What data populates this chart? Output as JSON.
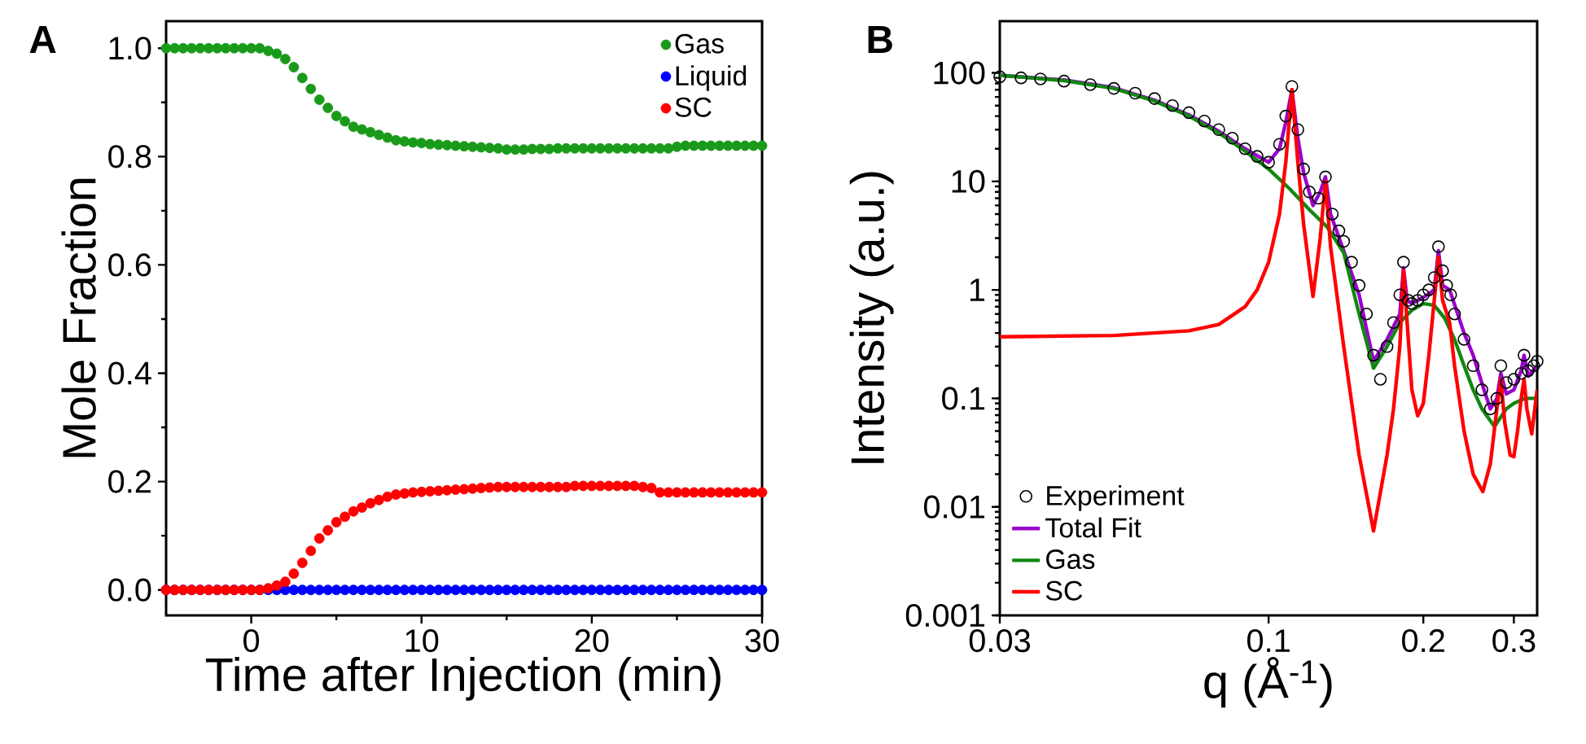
{
  "chart_data": [
    {
      "type": "scatter",
      "title": "A",
      "xlabel": "Time after Injection (min)",
      "ylabel": "Mole Fraction",
      "x": [
        -5,
        -4.5,
        -4,
        -3.5,
        -3,
        -2.5,
        -2,
        -1.5,
        -1,
        -0.5,
        0,
        0.5,
        1,
        1.5,
        2,
        2.5,
        3,
        3.5,
        4,
        4.5,
        5,
        5.5,
        6,
        6.5,
        7,
        7.5,
        8,
        8.5,
        9,
        9.5,
        10,
        10.5,
        11,
        11.5,
        12,
        12.5,
        13,
        13.5,
        14,
        14.5,
        15,
        15.5,
        16,
        16.5,
        17,
        17.5,
        18,
        18.5,
        19,
        19.5,
        20,
        20.5,
        21,
        21.5,
        22,
        22.5,
        23,
        23.5,
        24,
        24.5,
        25,
        25.5,
        26,
        26.5,
        27,
        27.5,
        28,
        28.5,
        29,
        29.5,
        30
      ],
      "series": [
        {
          "name": "Gas",
          "color": "#1a9a1a",
          "values": [
            1.0,
            1.0,
            1.0,
            1.0,
            1.0,
            1.0,
            1.0,
            1.0,
            1.0,
            1.0,
            1.0,
            1.0,
            0.995,
            0.99,
            0.98,
            0.965,
            0.945,
            0.925,
            0.905,
            0.89,
            0.875,
            0.865,
            0.855,
            0.85,
            0.845,
            0.84,
            0.835,
            0.83,
            0.828,
            0.826,
            0.825,
            0.823,
            0.822,
            0.821,
            0.82,
            0.819,
            0.818,
            0.817,
            0.816,
            0.815,
            0.813,
            0.813,
            0.813,
            0.814,
            0.814,
            0.814,
            0.815,
            0.815,
            0.815,
            0.815,
            0.815,
            0.815,
            0.815,
            0.815,
            0.815,
            0.815,
            0.815,
            0.815,
            0.815,
            0.815,
            0.818,
            0.82,
            0.82,
            0.82,
            0.82,
            0.82,
            0.82,
            0.82,
            0.82,
            0.82,
            0.82
          ]
        },
        {
          "name": "Liquid",
          "color": "#0000ff",
          "values": [
            0,
            0,
            0,
            0,
            0,
            0,
            0,
            0,
            0,
            0,
            0,
            0,
            0,
            0,
            0,
            0,
            0,
            0,
            0,
            0,
            0,
            0,
            0,
            0,
            0,
            0,
            0,
            0,
            0,
            0,
            0,
            0,
            0,
            0,
            0,
            0,
            0,
            0,
            0,
            0,
            0,
            0,
            0,
            0,
            0,
            0,
            0,
            0,
            0,
            0,
            0,
            0,
            0,
            0,
            0,
            0,
            0,
            0,
            0,
            0,
            0,
            0,
            0,
            0,
            0,
            0,
            0,
            0,
            0,
            0,
            0
          ]
        },
        {
          "name": "SC",
          "color": "#ff0000",
          "values": [
            0,
            0,
            0,
            0,
            0,
            0,
            0,
            0,
            0,
            0,
            0,
            0,
            0.003,
            0.008,
            0.015,
            0.03,
            0.05,
            0.072,
            0.095,
            0.11,
            0.125,
            0.135,
            0.145,
            0.152,
            0.16,
            0.166,
            0.172,
            0.176,
            0.178,
            0.18,
            0.181,
            0.182,
            0.183,
            0.184,
            0.185,
            0.186,
            0.187,
            0.188,
            0.189,
            0.19,
            0.19,
            0.19,
            0.19,
            0.19,
            0.19,
            0.19,
            0.19,
            0.19,
            0.192,
            0.192,
            0.192,
            0.192,
            0.192,
            0.192,
            0.192,
            0.192,
            0.19,
            0.188,
            0.18,
            0.18,
            0.18,
            0.18,
            0.18,
            0.18,
            0.18,
            0.18,
            0.18,
            0.18,
            0.18,
            0.18,
            0.18
          ]
        }
      ],
      "xlim": [
        -5,
        30
      ],
      "ylim": [
        -0.047,
        1.05
      ],
      "xticks": [
        0,
        10,
        20,
        30
      ],
      "yticks": [
        {
          "value": 0,
          "label": "0.0"
        },
        0.2,
        0.4,
        0.6,
        0.8,
        {
          "value": 1,
          "label": "1.0"
        }
      ],
      "legend": "top right",
      "marker": "circle"
    },
    {
      "type": "line",
      "title": "B",
      "xlabel": "q (Å$^{-1}$)",
      "ylabel": "Intensity (a.u.)",
      "log": "xy",
      "series": [
        {
          "name": "Experiment",
          "type": "scatter",
          "marker": "circle",
          "color": "#000000",
          "x": [
            0.03,
            0.033,
            0.036,
            0.04,
            0.045,
            0.05,
            0.055,
            0.06,
            0.065,
            0.07,
            0.075,
            0.08,
            0.085,
            0.09,
            0.095,
            0.1,
            0.105,
            0.108,
            0.111,
            0.114,
            0.117,
            0.12,
            0.125,
            0.129,
            0.133,
            0.137,
            0.14,
            0.145,
            0.15,
            0.155,
            0.16,
            0.165,
            0.17,
            0.175,
            0.18,
            0.183,
            0.187,
            0.19,
            0.195,
            0.2,
            0.205,
            0.21,
            0.214,
            0.218,
            0.222,
            0.226,
            0.23,
            0.24,
            0.25,
            0.26,
            0.27,
            0.278,
            0.283,
            0.29,
            0.3,
            0.31,
            0.314,
            0.32,
            0.328,
            0.333
          ],
          "values": [
            92,
            90,
            88,
            84,
            78,
            72,
            65,
            58,
            50,
            43,
            36,
            30,
            25,
            20,
            17,
            15,
            22,
            40,
            75,
            30,
            13,
            8,
            7,
            11,
            5,
            3.5,
            2.8,
            1.8,
            1.1,
            0.6,
            0.25,
            0.15,
            0.3,
            0.5,
            0.9,
            1.8,
            0.8,
            0.75,
            0.8,
            0.9,
            1.0,
            1.3,
            2.5,
            1.5,
            1.1,
            0.9,
            0.6,
            0.35,
            0.2,
            0.12,
            0.08,
            0.1,
            0.2,
            0.14,
            0.15,
            0.17,
            0.25,
            0.18,
            0.2,
            0.22
          ]
        },
        {
          "name": "Total Fit",
          "marker": "none",
          "color": "#9900cc",
          "x": [
            0.03,
            0.04,
            0.05,
            0.06,
            0.07,
            0.08,
            0.09,
            0.1,
            0.105,
            0.108,
            0.111,
            0.114,
            0.117,
            0.122,
            0.126,
            0.129,
            0.132,
            0.14,
            0.15,
            0.16,
            0.17,
            0.18,
            0.183,
            0.186,
            0.19,
            0.2,
            0.21,
            0.214,
            0.218,
            0.225,
            0.24,
            0.25,
            0.261,
            0.27,
            0.278,
            0.283,
            0.29,
            0.3,
            0.31,
            0.314,
            0.32,
            0.333
          ],
          "values": [
            95,
            86,
            73,
            56,
            41,
            29,
            20,
            15,
            20,
            35,
            70,
            25,
            12,
            6,
            8,
            11,
            5,
            2.3,
            0.9,
            0.22,
            0.35,
            0.6,
            1.6,
            0.8,
            0.75,
            0.85,
            1.0,
            2.3,
            1.1,
            1.0,
            0.4,
            0.25,
            0.13,
            0.08,
            0.1,
            0.17,
            0.11,
            0.12,
            0.18,
            0.25,
            0.16,
            0.2
          ]
        },
        {
          "name": "Gas",
          "marker": "none",
          "color": "#118811",
          "x": [
            0.03,
            0.04,
            0.05,
            0.06,
            0.07,
            0.08,
            0.09,
            0.1,
            0.11,
            0.12,
            0.13,
            0.14,
            0.15,
            0.16,
            0.17,
            0.18,
            0.19,
            0.2,
            0.21,
            0.22,
            0.23,
            0.24,
            0.25,
            0.26,
            0.275,
            0.29,
            0.3,
            0.315,
            0.333
          ],
          "values": [
            95,
            85,
            72,
            55,
            40,
            28,
            19,
            13,
            8.5,
            5.5,
            3.8,
            2.2,
            0.6,
            0.19,
            0.3,
            0.5,
            0.65,
            0.75,
            0.72,
            0.55,
            0.35,
            0.2,
            0.12,
            0.08,
            0.055,
            0.08,
            0.09,
            0.1,
            0.1
          ]
        },
        {
          "name": "SC",
          "marker": "none",
          "color": "#ff0000",
          "x": [
            0.03,
            0.05,
            0.07,
            0.08,
            0.09,
            0.095,
            0.1,
            0.105,
            0.108,
            0.111,
            0.114,
            0.117,
            0.122,
            0.126,
            0.129,
            0.132,
            0.14,
            0.15,
            0.16,
            0.17,
            0.175,
            0.18,
            0.183,
            0.186,
            0.19,
            0.195,
            0.2,
            0.205,
            0.21,
            0.214,
            0.218,
            0.225,
            0.23,
            0.24,
            0.25,
            0.261,
            0.27,
            0.278,
            0.283,
            0.288,
            0.295,
            0.3,
            0.305,
            0.31,
            0.314,
            0.318,
            0.325,
            0.333
          ],
          "values": [
            0.37,
            0.38,
            0.42,
            0.48,
            0.7,
            1.0,
            1.8,
            5,
            15,
            70,
            15,
            4,
            0.87,
            3,
            10,
            2.5,
            0.3,
            0.03,
            0.006,
            0.03,
            0.08,
            0.3,
            1.5,
            0.5,
            0.12,
            0.069,
            0.09,
            0.25,
            0.8,
            2,
            0.8,
            0.5,
            0.2,
            0.05,
            0.02,
            0.0138,
            0.025,
            0.08,
            0.15,
            0.06,
            0.03,
            0.029,
            0.05,
            0.1,
            0.15,
            0.08,
            0.047,
            0.12
          ]
        }
      ],
      "xlim": [
        0.03,
        0.333
      ],
      "ylim": [
        0.001,
        300
      ],
      "xticks": [
        0.03,
        0.1,
        0.2,
        0.3
      ],
      "yticks": [
        0.001,
        0.01,
        0.1,
        1,
        10,
        100
      ],
      "legend": "bottom left"
    }
  ]
}
